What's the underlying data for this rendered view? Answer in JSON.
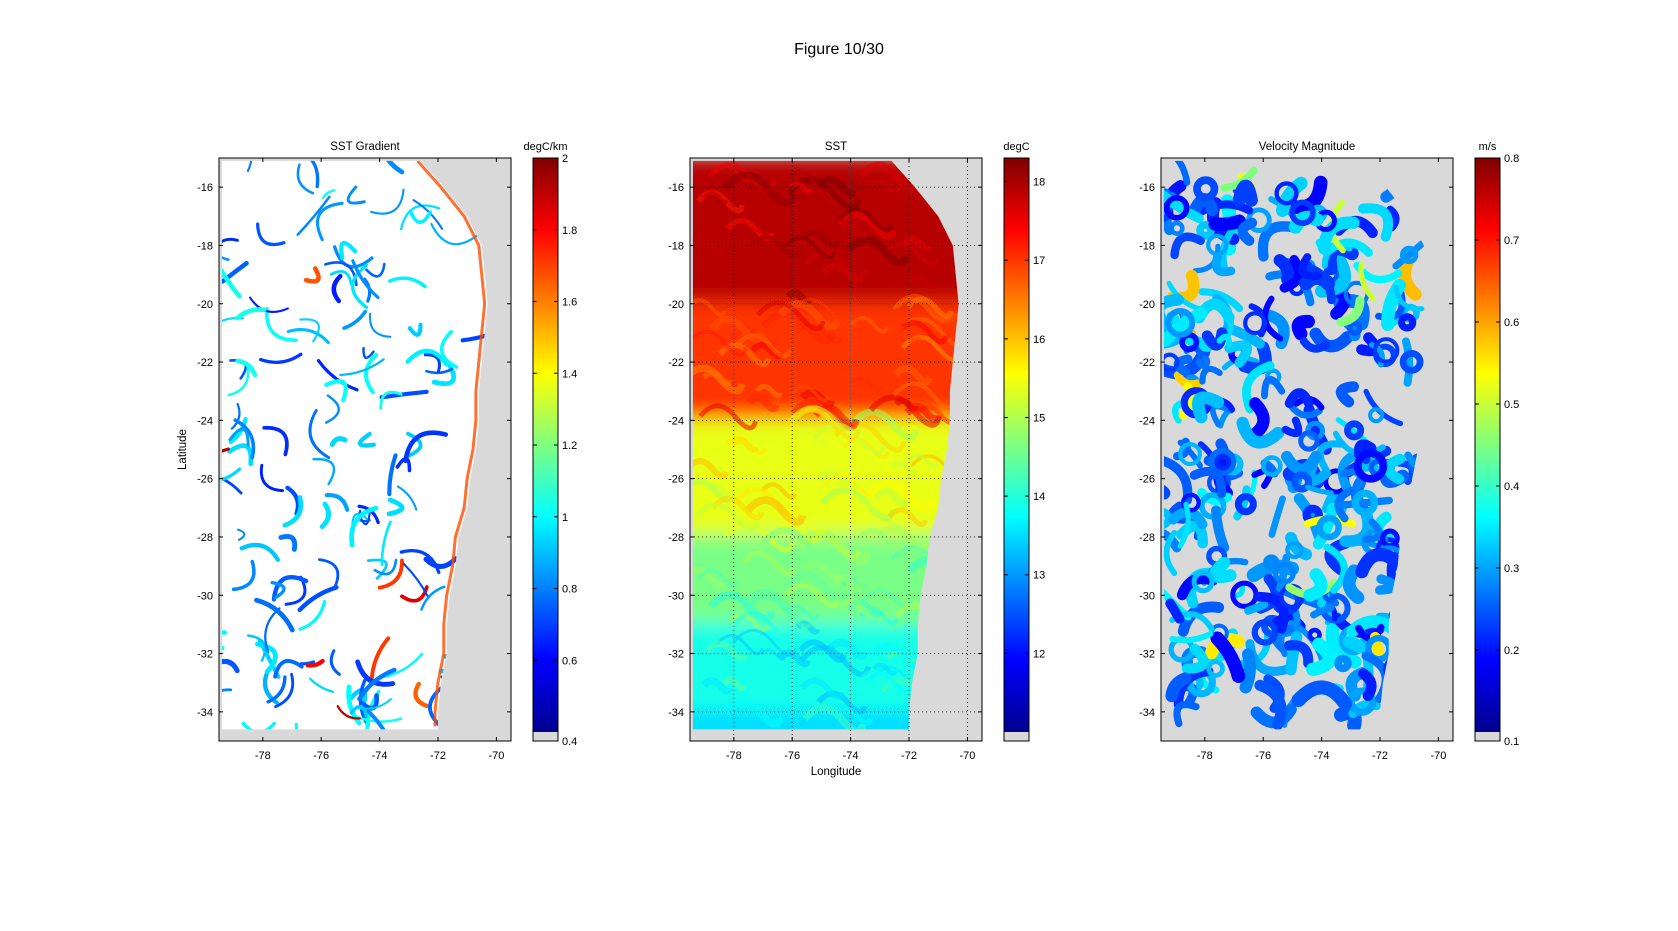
{
  "figure": {
    "title": "Figure  10/30"
  },
  "chart_data": [
    {
      "type": "heatmap",
      "title": "SST Gradient",
      "xlabel": "",
      "ylabel": "Latitude",
      "xlim": [
        -79.5,
        -69.5
      ],
      "ylim": [
        -35,
        -15
      ],
      "xticks": [
        -78,
        -76,
        -74,
        -72,
        -70
      ],
      "yticks": [
        -16,
        -18,
        -20,
        -22,
        -24,
        -26,
        -28,
        -30,
        -32,
        -34
      ],
      "grid": false,
      "colorbar": {
        "label": "degC/km",
        "range": [
          0.4,
          2.0
        ],
        "ticks": [
          0.4,
          0.6,
          0.8,
          1,
          1.2,
          1.4,
          1.6,
          1.8,
          2
        ],
        "below_range_color": "#d9d9d9"
      },
      "colormap": "jet",
      "background_color": "#d9d9d9"
    },
    {
      "type": "heatmap",
      "title": "SST",
      "xlabel": "Longitude",
      "ylabel": "",
      "xlim": [
        -79.5,
        -69.5
      ],
      "ylim": [
        -35,
        -15
      ],
      "xticks": [
        -78,
        -76,
        -74,
        -72,
        -70
      ],
      "yticks": [
        -16,
        -18,
        -20,
        -22,
        -24,
        -26,
        -28,
        -30,
        -32,
        -34
      ],
      "grid": true,
      "colorbar": {
        "label": "degC",
        "range": [
          11,
          18.3
        ],
        "ticks": [
          12,
          13,
          14,
          15,
          16,
          17,
          18
        ],
        "below_range_color": "#d9d9d9"
      },
      "colormap": "jet",
      "background_color": "#d9d9d9",
      "zones": [
        {
          "lat": [
            -15,
            -20
          ],
          "value": 17.9
        },
        {
          "lat": [
            -20,
            -24
          ],
          "value": 17.0
        },
        {
          "lat": [
            -24,
            -28
          ],
          "value": 15.4
        },
        {
          "lat": [
            -28,
            -31
          ],
          "value": 14.6
        },
        {
          "lat": [
            -31,
            -34
          ],
          "value": 13.9
        },
        {
          "lat": [
            -34,
            -35
          ],
          "value": 13.5
        }
      ]
    },
    {
      "type": "heatmap",
      "title": "Velocity Magnitude",
      "xlabel": "",
      "ylabel": "",
      "xlim": [
        -79.5,
        -69.5
      ],
      "ylim": [
        -35,
        -15
      ],
      "xticks": [
        -78,
        -76,
        -74,
        -72,
        -70
      ],
      "yticks": [
        -16,
        -18,
        -20,
        -22,
        -24,
        -26,
        -28,
        -30,
        -32,
        -34
      ],
      "grid": false,
      "colorbar": {
        "label": "m/s",
        "range": [
          0.1,
          0.8
        ],
        "ticks": [
          0.1,
          0.2,
          0.3,
          0.4,
          0.5,
          0.6,
          0.7,
          0.8
        ],
        "below_range_color": "#d9d9d9"
      },
      "colormap": "jet",
      "background_color": "#d9d9d9"
    }
  ]
}
